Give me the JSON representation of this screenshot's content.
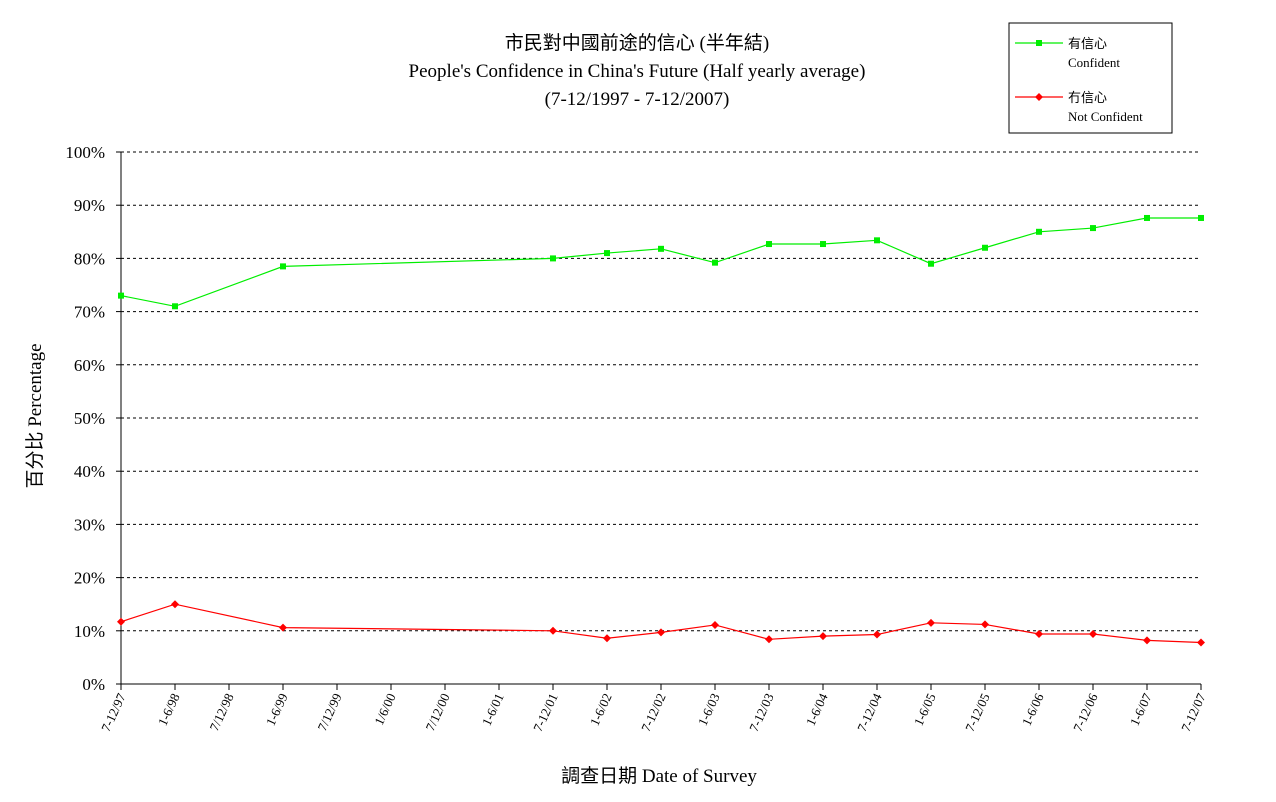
{
  "chart_data": {
    "type": "line",
    "title": "市民對中國前途的信心 (半年結)",
    "subtitle": "People's Confidence in China's Future (Half yearly average)",
    "subtitle2": "(7-12/1997 - 7-12/2007)",
    "xlabel": "調查日期 Date of Survey",
    "ylabel": "百分比 Percentage",
    "ylim": [
      0,
      100
    ],
    "y_ticks": [
      "0%",
      "10%",
      "20%",
      "30%",
      "40%",
      "50%",
      "60%",
      "70%",
      "80%",
      "90%",
      "100%"
    ],
    "categories": [
      "7-12/97",
      "1-6/98",
      "7/12/98",
      "1-6/99",
      "7/12/99",
      "1/6/00",
      "7/12/00",
      "1-6/01",
      "7-12/01",
      "1-6/02",
      "7-12/02",
      "1-6/03",
      "7-12/03",
      "1-6/04",
      "7-12/04",
      "1-6/05",
      "7-12/05",
      "1-6/06",
      "7-12/06",
      "1-6/07",
      "7-12/07"
    ],
    "grid": true,
    "legend_position": "top-right",
    "series": [
      {
        "name": "有信心",
        "name_en": "Confident",
        "color": "#00ee00",
        "marker": "square",
        "values": [
          73.0,
          71.0,
          null,
          78.5,
          null,
          null,
          null,
          null,
          80.0,
          81.0,
          81.8,
          79.2,
          82.7,
          82.7,
          83.4,
          79.0,
          82.0,
          85.0,
          85.7,
          87.6,
          87.6
        ]
      },
      {
        "name": "冇信心",
        "name_en": "Not Confident",
        "color": "#ff0000",
        "marker": "diamond",
        "values": [
          11.7,
          15.0,
          null,
          10.6,
          null,
          null,
          null,
          null,
          10.0,
          8.6,
          9.7,
          11.1,
          8.4,
          9.0,
          9.3,
          11.5,
          11.2,
          9.4,
          9.4,
          8.2,
          7.8
        ]
      }
    ]
  }
}
